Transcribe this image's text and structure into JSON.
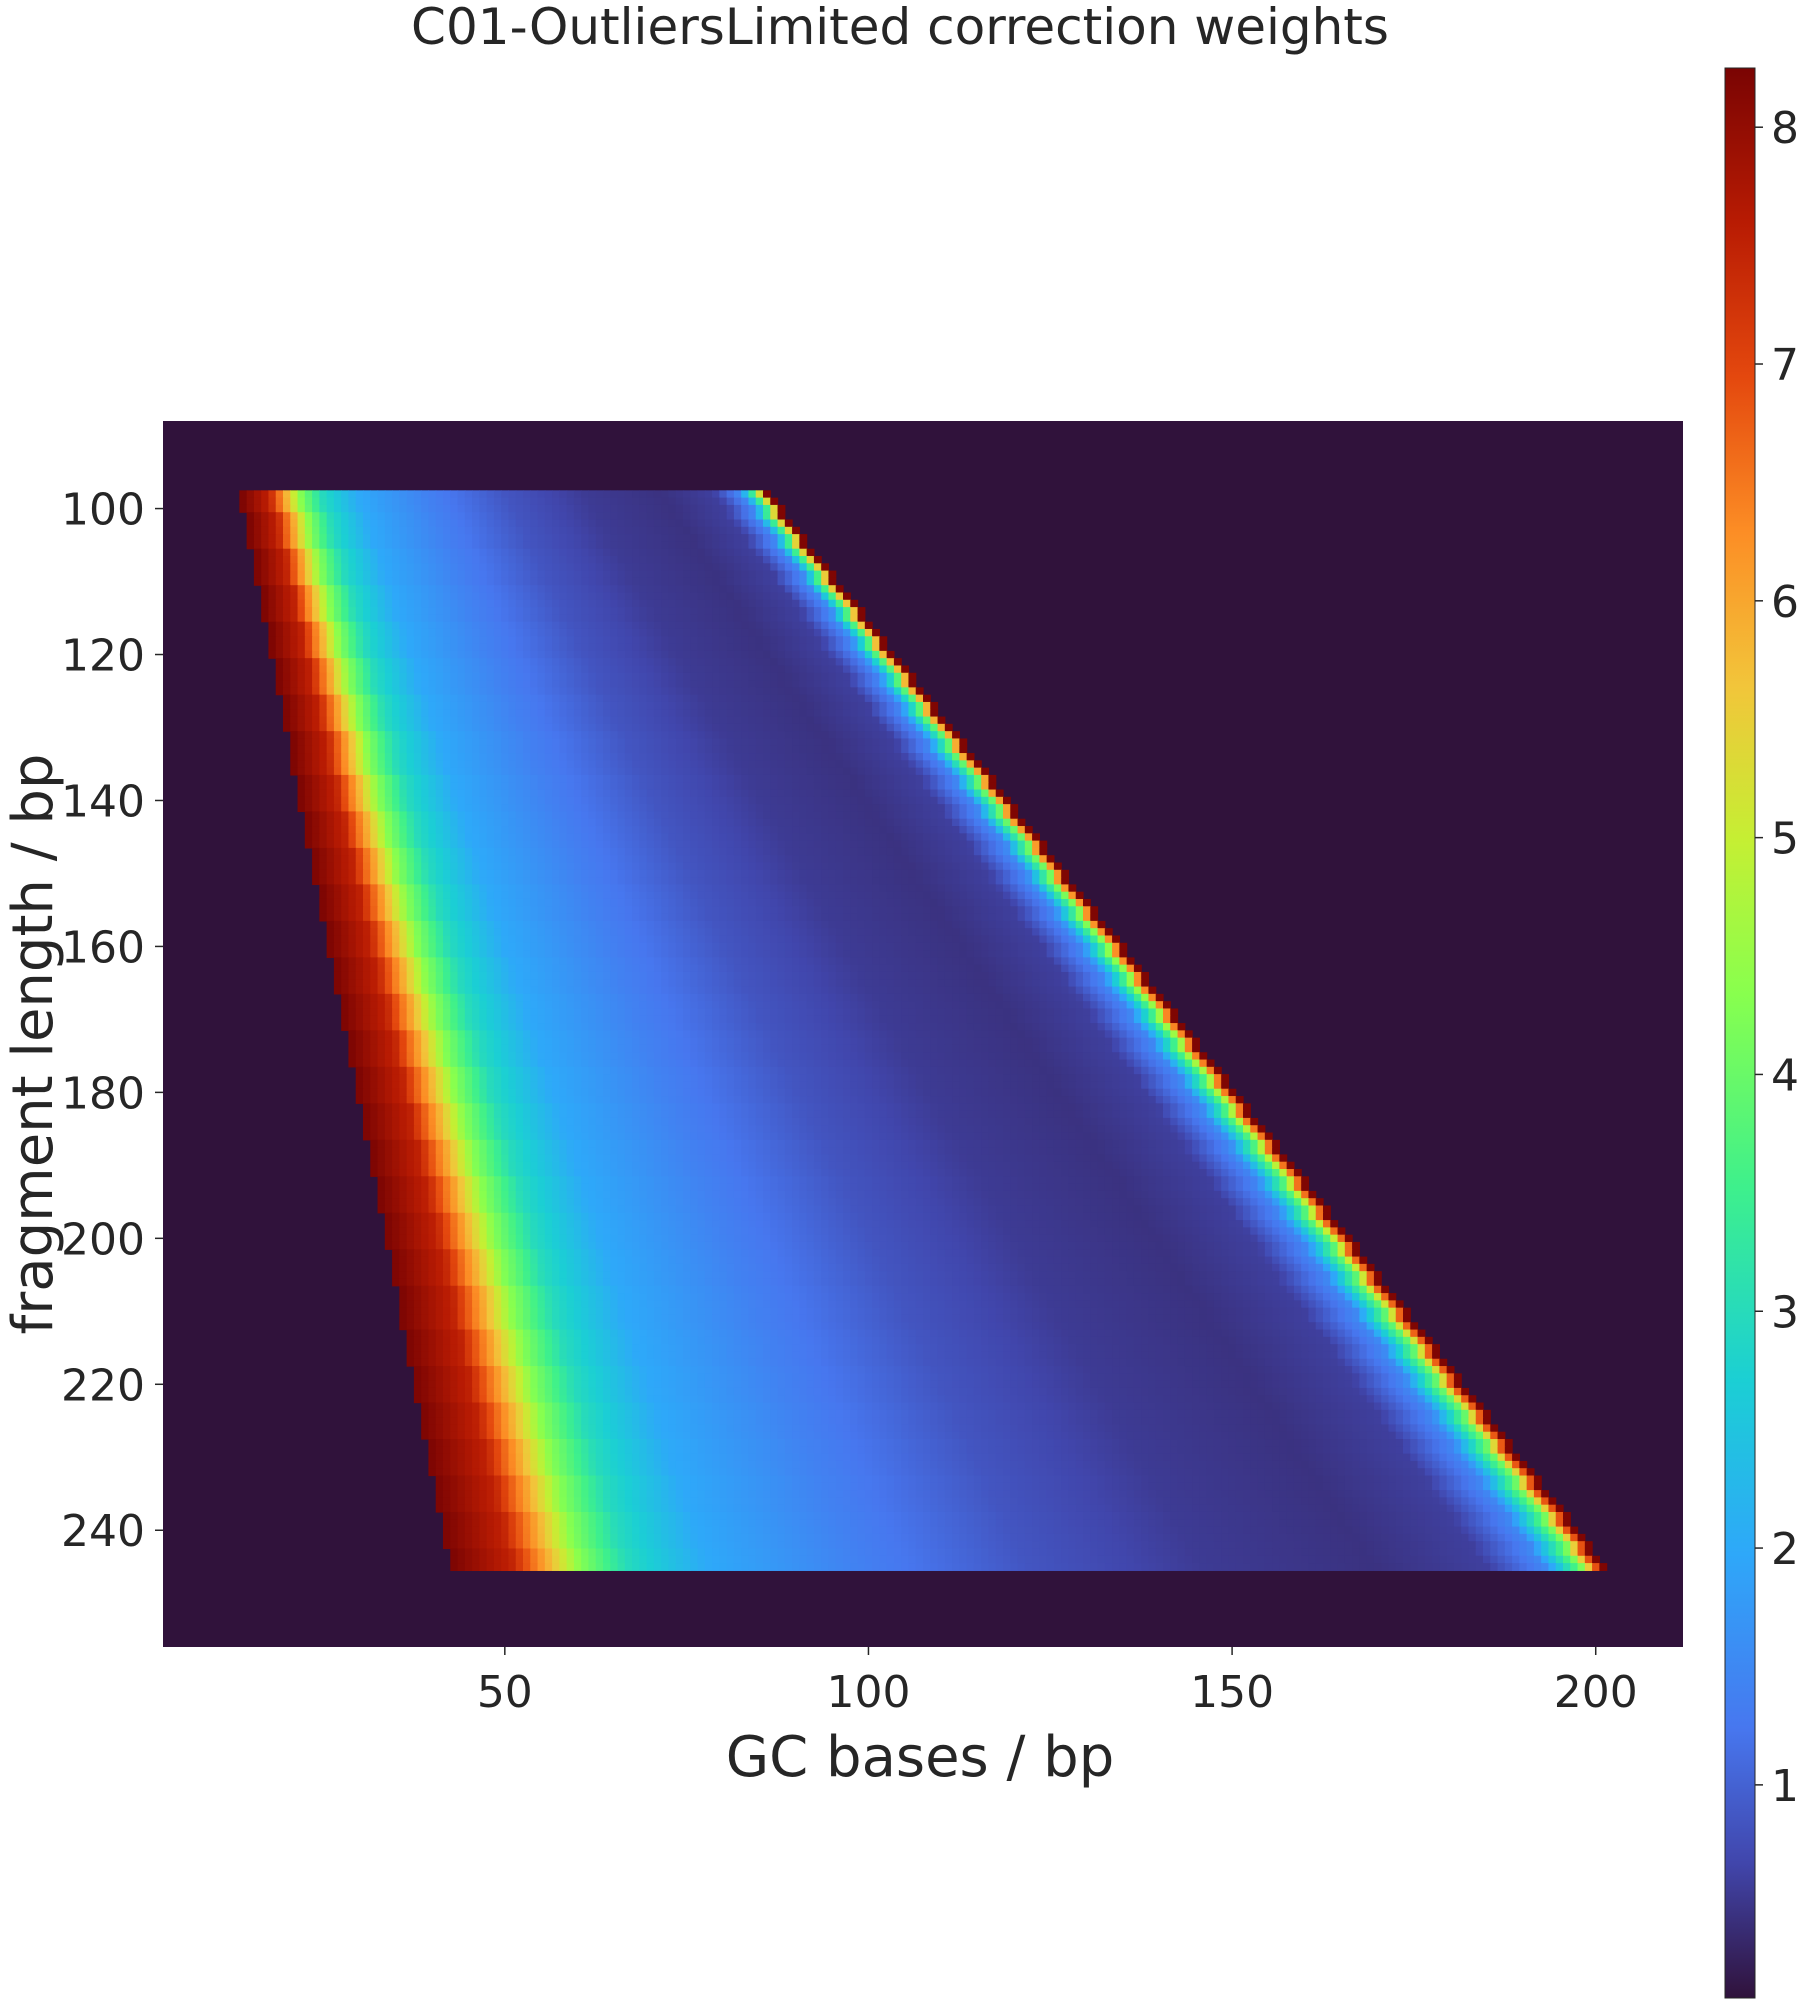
{
  "chart_data": {
    "type": "heatmap",
    "title": "C01-OutliersLimited correction weights",
    "xlabel": "GC bases / bp",
    "ylabel": "fragment length / bp",
    "x_ticks": [
      50,
      100,
      150,
      200
    ],
    "y_ticks": [
      100,
      120,
      140,
      160,
      180,
      200,
      220,
      240
    ],
    "xlim": [
      3,
      212
    ],
    "ylim": [
      256,
      88
    ],
    "fragment_length_range": [
      98,
      245
    ],
    "colorbar": {
      "ticks": [
        1,
        2,
        3,
        4,
        5,
        6,
        7,
        8
      ],
      "range": [
        0.1,
        8.25
      ],
      "colormap": "turbo"
    },
    "background_color": "#30123b",
    "weight_profile_along_gc_fraction": [
      {
        "gc_fraction": 0.0,
        "weight": 8.2
      },
      {
        "gc_fraction": 0.05,
        "weight": 7.5
      },
      {
        "gc_fraction": 0.08,
        "weight": 6.0
      },
      {
        "gc_fraction": 0.11,
        "weight": 4.3
      },
      {
        "gc_fraction": 0.15,
        "weight": 3.0
      },
      {
        "gc_fraction": 0.22,
        "weight": 2.0
      },
      {
        "gc_fraction": 0.35,
        "weight": 1.4
      },
      {
        "gc_fraction": 0.5,
        "weight": 0.85
      },
      {
        "gc_fraction": 0.65,
        "weight": 0.55
      },
      {
        "gc_fraction": 0.8,
        "weight": 0.45
      },
      {
        "gc_fraction": 0.9,
        "weight": 0.6
      },
      {
        "gc_fraction": 0.95,
        "weight": 1.5
      },
      {
        "gc_fraction": 0.98,
        "weight": 4.0
      },
      {
        "gc_fraction": 1.0,
        "weight": 8.2
      }
    ]
  }
}
